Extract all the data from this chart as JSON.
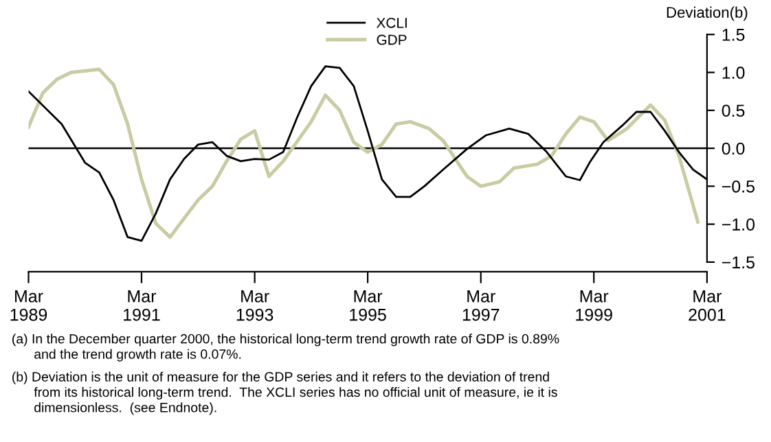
{
  "chart_data": {
    "type": "line",
    "ylabel": "Deviation(b)",
    "xlim": [
      "1989-03",
      "2001-03"
    ],
    "xticks": [
      {
        "value": "1989-03",
        "label": "Mar\n1989"
      },
      {
        "value": "1991-03",
        "label": "Mar\n1991"
      },
      {
        "value": "1993-03",
        "label": "Mar\n1993"
      },
      {
        "value": "1995-03",
        "label": "Mar\n1995"
      },
      {
        "value": "1997-03",
        "label": "Mar\n1997"
      },
      {
        "value": "1999-03",
        "label": "Mar\n1999"
      },
      {
        "value": "2001-03",
        "label": "Mar\n2001"
      }
    ],
    "ylim": [
      -1.5,
      1.5
    ],
    "yticks": [
      {
        "value": -1.5,
        "label": "−1.5"
      },
      {
        "value": -1.0,
        "label": "−1.0"
      },
      {
        "value": -0.5,
        "label": "−0.5"
      },
      {
        "value": 0.0,
        "label": "0.0"
      },
      {
        "value": 0.5,
        "label": "0.5"
      },
      {
        "value": 1.0,
        "label": "1.0"
      },
      {
        "value": 1.5,
        "label": "1.5"
      }
    ],
    "grid": false,
    "legend": "top",
    "ref_lines": [
      {
        "axis": "y",
        "value": 0,
        "color": "#000000"
      }
    ],
    "series": [
      {
        "name": "XCLI",
        "color": "#000000",
        "x": [
          "1989-03",
          "1989-10",
          "1990-03",
          "1990-06",
          "1990-09",
          "1990-12",
          "1991-03",
          "1991-06",
          "1991-09",
          "1991-12",
          "1992-03",
          "1992-06",
          "1992-09",
          "1992-12",
          "1993-03",
          "1993-06",
          "1993-09",
          "1993-12",
          "1994-03",
          "1994-06",
          "1994-09",
          "1994-12",
          "1995-03",
          "1995-06",
          "1995-09",
          "1995-12",
          "1996-03",
          "1996-07",
          "1996-12",
          "1997-04",
          "1997-09",
          "1998-01",
          "1998-05",
          "1998-09",
          "1998-12",
          "1999-02",
          "1999-05",
          "1999-09",
          "1999-12",
          "2000-03",
          "2000-06",
          "2000-09",
          "2000-12",
          "2001-03"
        ],
        "values": [
          0.75,
          0.32,
          -0.19,
          -0.32,
          -0.68,
          -1.17,
          -1.22,
          -0.86,
          -0.41,
          -0.14,
          0.05,
          0.08,
          -0.1,
          -0.17,
          -0.14,
          -0.15,
          -0.05,
          0.41,
          0.82,
          1.08,
          1.06,
          0.82,
          0.23,
          -0.41,
          -0.64,
          -0.64,
          -0.5,
          -0.28,
          -0.01,
          0.17,
          0.26,
          0.19,
          -0.05,
          -0.37,
          -0.42,
          -0.19,
          0.08,
          0.3,
          0.48,
          0.48,
          0.23,
          -0.05,
          -0.28,
          -0.41
        ]
      },
      {
        "name": "GDP",
        "color": "#c9cba3",
        "x": [
          "1989-03",
          "1989-06",
          "1989-09",
          "1989-12",
          "1990-06",
          "1990-09",
          "1990-12",
          "1991-03",
          "1991-06",
          "1991-09",
          "1992-03",
          "1992-06",
          "1992-09",
          "1992-12",
          "1993-03",
          "1993-06",
          "1993-09",
          "1994-03",
          "1994-06",
          "1994-09",
          "1994-12",
          "1995-03",
          "1995-06",
          "1995-09",
          "1995-12",
          "1996-04",
          "1996-07",
          "1996-12",
          "1997-03",
          "1997-07",
          "1997-10",
          "1998-03",
          "1998-06",
          "1998-09",
          "1998-12",
          "1999-03",
          "1999-06",
          "1999-10",
          "2000-03",
          "2000-06",
          "2000-09",
          "2001-01"
        ],
        "values": [
          0.28,
          0.73,
          0.91,
          1.0,
          1.04,
          0.84,
          0.32,
          -0.41,
          -0.99,
          -1.17,
          -0.68,
          -0.5,
          -0.17,
          0.12,
          0.23,
          -0.37,
          -0.17,
          0.35,
          0.7,
          0.5,
          0.08,
          -0.05,
          0.05,
          0.32,
          0.35,
          0.26,
          0.1,
          -0.37,
          -0.5,
          -0.44,
          -0.26,
          -0.21,
          -0.1,
          0.19,
          0.41,
          0.35,
          0.1,
          0.26,
          0.57,
          0.37,
          -0.1,
          -0.97
        ]
      }
    ],
    "annotations": [
      "(a) In the December quarter 2000, the historical long-term trend growth rate of GDP is 0.89%\n      and the trend growth rate is 0.07%.",
      "(b) Deviation is the unit of measure for the GDP series and it refers to the deviation of trend\n      from its historical long-term trend.  The XCLI series has no official unit of measure, ie it is\n      dimensionless.  (see Endnote)."
    ]
  }
}
